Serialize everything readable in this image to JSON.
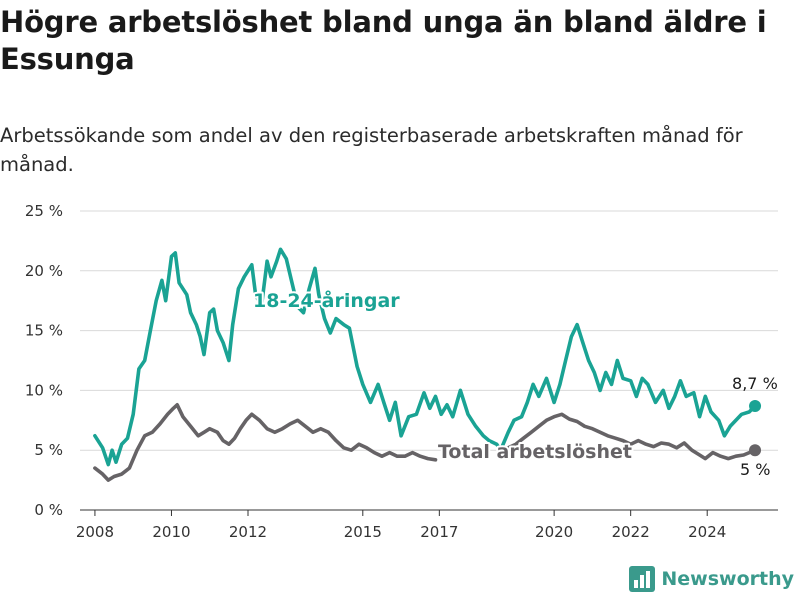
{
  "header": {
    "title": "Högre arbetslöshet bland unga än bland äldre i Essunga",
    "subtitle": "Arbetssökande som andel av den registerbaserade arbetskraften månad för månad."
  },
  "brand": {
    "name": "Newsworthy",
    "color": "#3a9a8c",
    "icon": "bar-chart-logo-icon"
  },
  "chart_data": {
    "type": "line",
    "x_unit": "year (decimal)",
    "xlim": [
      2007.5,
      2025.9
    ],
    "ylim": [
      0,
      25
    ],
    "y_ticks": [
      0,
      5,
      10,
      15,
      20,
      25
    ],
    "y_tick_labels": [
      "0 %",
      "5 %",
      "10 %",
      "15 %",
      "20 %",
      "25 %"
    ],
    "x_ticks": [
      2008,
      2010,
      2012,
      2015,
      2017,
      2020,
      2022,
      2024
    ],
    "x_tick_labels": [
      "2008",
      "2010",
      "2012",
      "2015",
      "2017",
      "2020",
      "2022",
      "2024"
    ],
    "grid": "horizontal",
    "legend": "inline labels",
    "series": [
      {
        "name": "18-24-åringar",
        "color": "#1aa394",
        "end_label": "8,7 %",
        "points": [
          [
            2008.0,
            6.2
          ],
          [
            2008.2,
            5.2
          ],
          [
            2008.35,
            3.8
          ],
          [
            2008.45,
            5.0
          ],
          [
            2008.55,
            4.0
          ],
          [
            2008.7,
            5.5
          ],
          [
            2008.85,
            6.0
          ],
          [
            2009.0,
            8.0
          ],
          [
            2009.15,
            11.8
          ],
          [
            2009.3,
            12.5
          ],
          [
            2009.45,
            15.0
          ],
          [
            2009.6,
            17.5
          ],
          [
            2009.75,
            19.2
          ],
          [
            2009.85,
            17.5
          ],
          [
            2010.0,
            21.2
          ],
          [
            2010.1,
            21.5
          ],
          [
            2010.2,
            19.0
          ],
          [
            2010.4,
            18.0
          ],
          [
            2010.5,
            16.5
          ],
          [
            2010.65,
            15.5
          ],
          [
            2010.75,
            14.5
          ],
          [
            2010.85,
            13.0
          ],
          [
            2011.0,
            16.5
          ],
          [
            2011.1,
            16.8
          ],
          [
            2011.2,
            15.0
          ],
          [
            2011.35,
            14.0
          ],
          [
            2011.5,
            12.5
          ],
          [
            2011.6,
            15.5
          ],
          [
            2011.75,
            18.5
          ],
          [
            2011.9,
            19.5
          ],
          [
            2012.1,
            20.5
          ],
          [
            2012.2,
            18.0
          ],
          [
            2012.35,
            17.0
          ],
          [
            2012.5,
            20.8
          ],
          [
            2012.6,
            19.5
          ],
          [
            2012.75,
            20.8
          ],
          [
            2012.85,
            21.8
          ],
          [
            2013.0,
            21.0
          ],
          [
            2013.15,
            19.0
          ],
          [
            2013.3,
            17.0
          ],
          [
            2013.45,
            16.5
          ],
          [
            2013.6,
            18.5
          ],
          [
            2013.75,
            20.2
          ],
          [
            2013.85,
            18.0
          ],
          [
            2014.0,
            16.0
          ],
          [
            2014.15,
            14.8
          ],
          [
            2014.3,
            16.0
          ],
          [
            2014.5,
            15.5
          ],
          [
            2014.65,
            15.2
          ],
          [
            2014.85,
            12.0
          ],
          [
            2015.0,
            10.5
          ],
          [
            2015.2,
            9.0
          ],
          [
            2015.4,
            10.5
          ],
          [
            2015.55,
            9.0
          ],
          [
            2015.7,
            7.5
          ],
          [
            2015.85,
            9.0
          ],
          [
            2016.0,
            6.2
          ],
          [
            2016.2,
            7.8
          ],
          [
            2016.4,
            8.0
          ],
          [
            2016.6,
            9.8
          ],
          [
            2016.75,
            8.5
          ],
          [
            2016.9,
            9.5
          ],
          [
            2017.05,
            8.0
          ],
          [
            2017.2,
            8.8
          ],
          [
            2017.35,
            7.8
          ],
          [
            2017.55,
            10.0
          ],
          [
            2017.75,
            8.0
          ],
          [
            2017.95,
            7.0
          ],
          [
            2018.15,
            6.2
          ],
          [
            2018.3,
            5.8
          ],
          [
            2018.5,
            5.5
          ],
          [
            2018.6,
            5.0
          ],
          [
            2018.8,
            6.5
          ],
          [
            2018.95,
            7.5
          ],
          [
            2019.15,
            7.8
          ],
          [
            2019.3,
            9.0
          ],
          [
            2019.45,
            10.5
          ],
          [
            2019.6,
            9.5
          ],
          [
            2019.8,
            11.0
          ],
          [
            2020.0,
            9.0
          ],
          [
            2020.15,
            10.5
          ],
          [
            2020.3,
            12.5
          ],
          [
            2020.45,
            14.5
          ],
          [
            2020.6,
            15.5
          ],
          [
            2020.75,
            14.0
          ],
          [
            2020.9,
            12.5
          ],
          [
            2021.05,
            11.5
          ],
          [
            2021.2,
            10.0
          ],
          [
            2021.35,
            11.5
          ],
          [
            2021.5,
            10.5
          ],
          [
            2021.65,
            12.5
          ],
          [
            2021.8,
            11.0
          ],
          [
            2022.0,
            10.8
          ],
          [
            2022.15,
            9.5
          ],
          [
            2022.3,
            11.0
          ],
          [
            2022.45,
            10.5
          ],
          [
            2022.65,
            9.0
          ],
          [
            2022.85,
            10.0
          ],
          [
            2023.0,
            8.5
          ],
          [
            2023.15,
            9.5
          ],
          [
            2023.3,
            10.8
          ],
          [
            2023.45,
            9.5
          ],
          [
            2023.65,
            9.8
          ],
          [
            2023.8,
            7.8
          ],
          [
            2023.95,
            9.5
          ],
          [
            2024.1,
            8.2
          ],
          [
            2024.3,
            7.5
          ],
          [
            2024.45,
            6.2
          ],
          [
            2024.6,
            7.0
          ],
          [
            2024.75,
            7.5
          ],
          [
            2024.9,
            8.0
          ],
          [
            2025.1,
            8.2
          ],
          [
            2025.25,
            8.7
          ]
        ]
      },
      {
        "name": "Total arbetslöshet",
        "color": "#666366",
        "end_label": "5 %",
        "points": [
          [
            2008.0,
            3.5
          ],
          [
            2008.2,
            3.0
          ],
          [
            2008.35,
            2.5
          ],
          [
            2008.5,
            2.8
          ],
          [
            2008.7,
            3.0
          ],
          [
            2008.9,
            3.5
          ],
          [
            2009.1,
            5.0
          ],
          [
            2009.3,
            6.2
          ],
          [
            2009.5,
            6.5
          ],
          [
            2009.7,
            7.2
          ],
          [
            2009.9,
            8.0
          ],
          [
            2010.05,
            8.5
          ],
          [
            2010.15,
            8.8
          ],
          [
            2010.3,
            7.8
          ],
          [
            2010.5,
            7.0
          ],
          [
            2010.7,
            6.2
          ],
          [
            2010.85,
            6.5
          ],
          [
            2011.0,
            6.8
          ],
          [
            2011.2,
            6.5
          ],
          [
            2011.35,
            5.8
          ],
          [
            2011.5,
            5.5
          ],
          [
            2011.65,
            6.0
          ],
          [
            2011.8,
            6.8
          ],
          [
            2011.95,
            7.5
          ],
          [
            2012.1,
            8.0
          ],
          [
            2012.3,
            7.5
          ],
          [
            2012.5,
            6.8
          ],
          [
            2012.7,
            6.5
          ],
          [
            2012.9,
            6.8
          ],
          [
            2013.1,
            7.2
          ],
          [
            2013.3,
            7.5
          ],
          [
            2013.5,
            7.0
          ],
          [
            2013.7,
            6.5
          ],
          [
            2013.9,
            6.8
          ],
          [
            2014.1,
            6.5
          ],
          [
            2014.3,
            5.8
          ],
          [
            2014.5,
            5.2
          ],
          [
            2014.7,
            5.0
          ],
          [
            2014.9,
            5.5
          ],
          [
            2015.1,
            5.2
          ],
          [
            2015.3,
            4.8
          ],
          [
            2015.5,
            4.5
          ],
          [
            2015.7,
            4.8
          ],
          [
            2015.9,
            4.5
          ],
          [
            2016.1,
            4.5
          ],
          [
            2016.3,
            4.8
          ],
          [
            2016.5,
            4.5
          ],
          [
            2016.7,
            4.3
          ],
          [
            2016.9,
            4.2
          ],
          [
            2018.8,
            5.2
          ],
          [
            2019.0,
            5.5
          ],
          [
            2019.2,
            6.0
          ],
          [
            2019.4,
            6.5
          ],
          [
            2019.6,
            7.0
          ],
          [
            2019.8,
            7.5
          ],
          [
            2020.0,
            7.8
          ],
          [
            2020.2,
            8.0
          ],
          [
            2020.4,
            7.6
          ],
          [
            2020.6,
            7.4
          ],
          [
            2020.8,
            7.0
          ],
          [
            2021.0,
            6.8
          ],
          [
            2021.2,
            6.5
          ],
          [
            2021.4,
            6.2
          ],
          [
            2021.6,
            6.0
          ],
          [
            2021.8,
            5.8
          ],
          [
            2022.0,
            5.5
          ],
          [
            2022.2,
            5.8
          ],
          [
            2022.4,
            5.5
          ],
          [
            2022.6,
            5.3
          ],
          [
            2022.8,
            5.6
          ],
          [
            2023.0,
            5.5
          ],
          [
            2023.2,
            5.2
          ],
          [
            2023.4,
            5.6
          ],
          [
            2023.6,
            5.0
          ],
          [
            2023.8,
            4.6
          ],
          [
            2023.95,
            4.3
          ],
          [
            2024.15,
            4.8
          ],
          [
            2024.35,
            4.5
          ],
          [
            2024.55,
            4.3
          ],
          [
            2024.75,
            4.5
          ],
          [
            2024.95,
            4.6
          ],
          [
            2025.1,
            4.8
          ],
          [
            2025.25,
            5.0
          ]
        ]
      }
    ]
  }
}
